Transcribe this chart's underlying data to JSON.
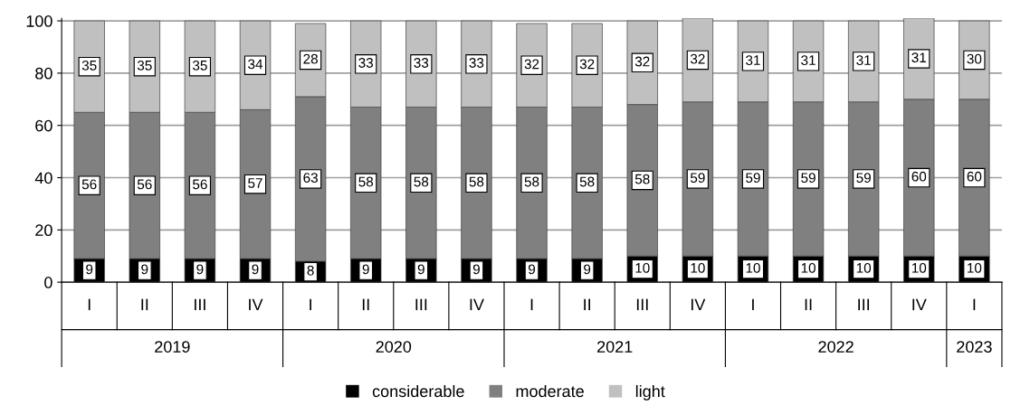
{
  "chart_data": {
    "type": "bar",
    "stacked": true,
    "categories": [
      "I",
      "II",
      "III",
      "IV",
      "I",
      "II",
      "III",
      "IV",
      "I",
      "II",
      "III",
      "IV",
      "I",
      "II",
      "III",
      "IV",
      "I"
    ],
    "series": [
      {
        "name": "considerable",
        "color": "#000000",
        "values": [
          9,
          9,
          9,
          9,
          8,
          9,
          9,
          9,
          9,
          9,
          10,
          10,
          10,
          10,
          10,
          10,
          10
        ]
      },
      {
        "name": "moderate",
        "color": "#808080",
        "values": [
          56,
          56,
          56,
          57,
          63,
          58,
          58,
          58,
          58,
          58,
          58,
          59,
          59,
          59,
          59,
          60,
          60
        ]
      },
      {
        "name": "light",
        "color": "#c0c0c0",
        "values": [
          35,
          35,
          35,
          34,
          28,
          33,
          33,
          33,
          32,
          32,
          32,
          32,
          31,
          31,
          31,
          31,
          30
        ]
      }
    ],
    "annotations": [
      "2019",
      "2020",
      "2021",
      "2022",
      "2023"
    ],
    "ylim": [
      0,
      101
    ],
    "yticks": [
      0,
      20,
      40,
      60,
      80,
      100
    ],
    "grid": "y",
    "legend": "bottom",
    "data_labels": true
  }
}
